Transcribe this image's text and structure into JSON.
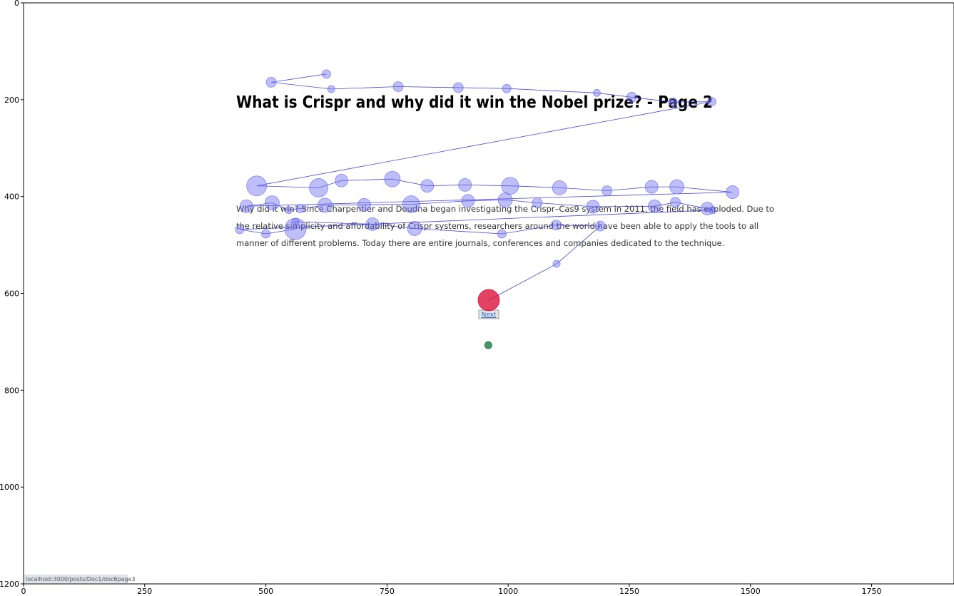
{
  "chart_data": {
    "type": "scatter",
    "title": "",
    "xlabel": "",
    "ylabel": "",
    "xlim": [
      0,
      1920
    ],
    "ylim": [
      1200,
      0
    ],
    "y_inverted": true,
    "grid": false,
    "x_ticks": [
      0,
      250,
      500,
      750,
      1000,
      1250,
      1500,
      1750
    ],
    "y_ticks": [
      0,
      200,
      400,
      600,
      800,
      1000,
      1200
    ],
    "colors": {
      "fixation": "#6f6ff0",
      "path": "#3333dd",
      "final_fixation": "#dc143c",
      "start_point": "#2e8b57"
    },
    "fixations": [
      {
        "x": 625,
        "y": 147,
        "r": 6
      },
      {
        "x": 511,
        "y": 164,
        "r": 7
      },
      {
        "x": 635,
        "y": 178,
        "r": 5
      },
      {
        "x": 773,
        "y": 173,
        "r": 7
      },
      {
        "x": 897,
        "y": 175,
        "r": 7
      },
      {
        "x": 997,
        "y": 177,
        "r": 6
      },
      {
        "x": 1183,
        "y": 186,
        "r": 5
      },
      {
        "x": 1255,
        "y": 195,
        "r": 7
      },
      {
        "x": 1340,
        "y": 205,
        "r": 6
      },
      {
        "x": 1420,
        "y": 204,
        "r": 6
      },
      {
        "x": 481,
        "y": 378,
        "r": 14
      },
      {
        "x": 609,
        "y": 382,
        "r": 13
      },
      {
        "x": 656,
        "y": 367,
        "r": 9
      },
      {
        "x": 761,
        "y": 364,
        "r": 11
      },
      {
        "x": 833,
        "y": 378,
        "r": 9
      },
      {
        "x": 911,
        "y": 376,
        "r": 9
      },
      {
        "x": 1004,
        "y": 378,
        "r": 12
      },
      {
        "x": 1106,
        "y": 382,
        "r": 10
      },
      {
        "x": 1204,
        "y": 388,
        "r": 7
      },
      {
        "x": 1296,
        "y": 380,
        "r": 9
      },
      {
        "x": 1348,
        "y": 380,
        "r": 10
      },
      {
        "x": 1463,
        "y": 391,
        "r": 9
      },
      {
        "x": 460,
        "y": 420,
        "r": 9
      },
      {
        "x": 513,
        "y": 413,
        "r": 10
      },
      {
        "x": 547,
        "y": 428,
        "r": 5
      },
      {
        "x": 571,
        "y": 425,
        "r": 6
      },
      {
        "x": 622,
        "y": 418,
        "r": 10
      },
      {
        "x": 703,
        "y": 417,
        "r": 9
      },
      {
        "x": 800,
        "y": 416,
        "r": 12
      },
      {
        "x": 917,
        "y": 409,
        "r": 9
      },
      {
        "x": 994,
        "y": 407,
        "r": 10
      },
      {
        "x": 1060,
        "y": 413,
        "r": 7
      },
      {
        "x": 1175,
        "y": 421,
        "r": 9
      },
      {
        "x": 1302,
        "y": 420,
        "r": 9
      },
      {
        "x": 1345,
        "y": 412,
        "r": 7
      },
      {
        "x": 1411,
        "y": 425,
        "r": 9
      },
      {
        "x": 1422,
        "y": 428,
        "r": 5
      },
      {
        "x": 446,
        "y": 468,
        "r": 6
      },
      {
        "x": 500,
        "y": 477,
        "r": 6
      },
      {
        "x": 561,
        "y": 467,
        "r": 15
      },
      {
        "x": 561,
        "y": 452,
        "r": 5
      },
      {
        "x": 720,
        "y": 457,
        "r": 9
      },
      {
        "x": 807,
        "y": 466,
        "r": 10
      },
      {
        "x": 987,
        "y": 477,
        "r": 6
      },
      {
        "x": 1099,
        "y": 459,
        "r": 7
      },
      {
        "x": 1190,
        "y": 461,
        "r": 7
      },
      {
        "x": 1100,
        "y": 539,
        "r": 5
      }
    ],
    "final_fixation": {
      "x": 960,
      "y": 614,
      "r": 15
    },
    "start_point": {
      "x": 959,
      "y": 707,
      "r": 5
    },
    "scanpath_order": [
      0,
      1,
      2,
      3,
      4,
      5,
      6,
      7,
      8,
      9,
      10,
      11,
      12,
      13,
      14,
      15,
      16,
      17,
      18,
      19,
      20,
      21,
      22,
      23,
      24,
      25,
      26,
      27,
      28,
      29,
      30,
      31,
      32,
      33,
      34,
      35,
      36,
      37,
      38,
      39,
      40,
      41,
      42,
      43,
      44,
      45,
      46,
      47
    ]
  },
  "page": {
    "title": "What is Crispr and why did it win the Nobel prize? - Page 2",
    "paragraph_lines": [
      "Why did it win? Since Charpentier and Doudna began investigating the Crispr–Cas9 system in 2011, the field has exploded. Due to",
      "the relative simplicity and affordability of Crispr systems, researchers around the world have been able to apply the tools to all",
      "manner of different problems. Today there are entire journals, conferences and companies dedicated to the technique."
    ],
    "next_link": "Next",
    "status_url": "localhost:3000/posts/Doc1/doc6page3"
  }
}
